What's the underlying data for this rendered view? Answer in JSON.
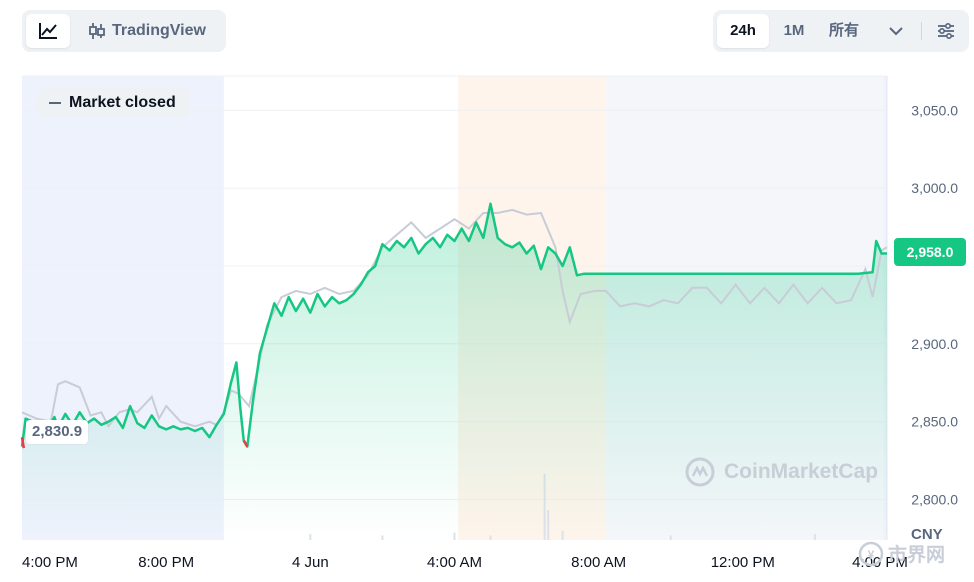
{
  "toolbar": {
    "line_chart_icon": "line-chart-icon",
    "tradingview_icon": "candlestick-icon",
    "tradingview_label": "TradingView",
    "ranges": [
      "24h",
      "1M",
      "所有"
    ],
    "active_range": "24h",
    "dropdown_icon": "chevron-down-icon",
    "settings_icon": "sliders-icon"
  },
  "market_status": "Market closed",
  "current_price_label": "2,958.0",
  "low_label": "2,830.9",
  "currency": "CNY",
  "watermark": "CoinMarketCap",
  "corner_logo": "市界网",
  "colors": {
    "line": "#16c784",
    "compare_line": "#c8ccd6",
    "asia_session": "#eef2fc",
    "london_session": "#fef4ec",
    "ny_session": "#f4f6fa",
    "down": "#ea3943"
  },
  "chart_data": {
    "type": "line",
    "title": "",
    "xlabel": "",
    "ylabel": "CNY",
    "x_ticks": [
      "4:00 PM",
      "8:00 PM",
      "4 Jun",
      "4:00 AM",
      "8:00 AM",
      "12:00 PM",
      "4:00 PM"
    ],
    "y_ticks": [
      2800,
      2850,
      2900,
      2950,
      3000,
      3050
    ],
    "y_tick_labels": [
      "2,800.0",
      "2,850.0",
      "2,900.0",
      "",
      "3,000.0",
      "3,050.0"
    ],
    "ylim": [
      2774,
      3072
    ],
    "x_range_hours": [
      0,
      24
    ],
    "grid": true,
    "legend": "none",
    "series": [
      {
        "values": [
          [
            0,
            2834
          ],
          [
            0.1,
            2852
          ],
          [
            0.3,
            2850
          ],
          [
            0.5,
            2848
          ],
          [
            0.7,
            2845
          ],
          [
            0.9,
            2853
          ],
          [
            1.0,
            2846
          ],
          [
            1.2,
            2855
          ],
          [
            1.4,
            2848
          ],
          [
            1.6,
            2856
          ],
          [
            1.8,
            2849
          ],
          [
            2.0,
            2852
          ],
          [
            2.2,
            2848
          ],
          [
            2.4,
            2850
          ],
          [
            2.6,
            2853
          ],
          [
            2.8,
            2846
          ],
          [
            3.0,
            2860
          ],
          [
            3.2,
            2849
          ],
          [
            3.4,
            2846
          ],
          [
            3.6,
            2854
          ],
          [
            3.8,
            2847
          ],
          [
            4.0,
            2845
          ],
          [
            4.2,
            2847
          ],
          [
            4.4,
            2845
          ],
          [
            4.6,
            2846
          ],
          [
            4.8,
            2844
          ],
          [
            5.0,
            2846
          ],
          [
            5.2,
            2840
          ],
          [
            5.4,
            2848
          ],
          [
            5.6,
            2855
          ],
          [
            5.8,
            2875
          ],
          [
            5.95,
            2888
          ],
          [
            6.05,
            2860
          ],
          [
            6.15,
            2838
          ],
          [
            6.25,
            2834
          ],
          [
            6.4,
            2862
          ],
          [
            6.6,
            2894
          ],
          [
            6.8,
            2910
          ],
          [
            7.0,
            2926
          ],
          [
            7.2,
            2918
          ],
          [
            7.4,
            2930
          ],
          [
            7.6,
            2921
          ],
          [
            7.8,
            2929
          ],
          [
            8.0,
            2920
          ],
          [
            8.2,
            2932
          ],
          [
            8.4,
            2924
          ],
          [
            8.6,
            2930
          ],
          [
            8.8,
            2926
          ],
          [
            9.0,
            2928
          ],
          [
            9.2,
            2932
          ],
          [
            9.4,
            2938
          ],
          [
            9.6,
            2946
          ],
          [
            9.8,
            2950
          ],
          [
            10.0,
            2964
          ],
          [
            10.2,
            2960
          ],
          [
            10.4,
            2966
          ],
          [
            10.6,
            2962
          ],
          [
            10.8,
            2968
          ],
          [
            11.0,
            2958
          ],
          [
            11.2,
            2964
          ],
          [
            11.4,
            2968
          ],
          [
            11.6,
            2962
          ],
          [
            11.8,
            2970
          ],
          [
            12.0,
            2966
          ],
          [
            12.2,
            2974
          ],
          [
            12.4,
            2966
          ],
          [
            12.6,
            2978
          ],
          [
            12.8,
            2968
          ],
          [
            13.0,
            2990
          ],
          [
            13.2,
            2968
          ],
          [
            13.4,
            2964
          ],
          [
            13.6,
            2962
          ],
          [
            13.8,
            2965
          ],
          [
            14.0,
            2958
          ],
          [
            14.2,
            2963
          ],
          [
            14.4,
            2948
          ],
          [
            14.6,
            2962
          ],
          [
            14.8,
            2958
          ],
          [
            15.0,
            2950
          ],
          [
            15.2,
            2962
          ],
          [
            15.4,
            2944
          ],
          [
            15.6,
            2945
          ],
          [
            15.8,
            2945
          ],
          [
            16.5,
            2945
          ],
          [
            18.0,
            2945
          ],
          [
            20.0,
            2945
          ],
          [
            22.0,
            2945
          ],
          [
            23.2,
            2945
          ],
          [
            23.6,
            2946
          ],
          [
            23.7,
            2966
          ],
          [
            23.85,
            2958
          ],
          [
            24.0,
            2958
          ]
        ]
      },
      {
        "values": [
          [
            0,
            2856
          ],
          [
            0.4,
            2852
          ],
          [
            0.8,
            2850
          ],
          [
            1.0,
            2874
          ],
          [
            1.2,
            2876
          ],
          [
            1.6,
            2872
          ],
          [
            1.9,
            2854
          ],
          [
            2.2,
            2856
          ],
          [
            2.4,
            2847
          ],
          [
            2.7,
            2856
          ],
          [
            3.0,
            2858
          ],
          [
            3.2,
            2856
          ],
          [
            3.6,
            2866
          ],
          [
            3.8,
            2852
          ],
          [
            4.0,
            2860
          ],
          [
            4.4,
            2850
          ],
          [
            4.8,
            2847
          ],
          [
            5.2,
            2850
          ],
          [
            5.4,
            2848
          ],
          [
            5.6,
            2856
          ],
          [
            5.8,
            2870
          ],
          [
            6.0,
            2868
          ],
          [
            6.3,
            2860
          ],
          [
            6.6,
            2890
          ],
          [
            6.8,
            2912
          ],
          [
            7.2,
            2930
          ],
          [
            7.6,
            2934
          ],
          [
            8.0,
            2932
          ],
          [
            8.4,
            2936
          ],
          [
            8.8,
            2932
          ],
          [
            9.2,
            2934
          ],
          [
            9.6,
            2944
          ],
          [
            10.0,
            2962
          ],
          [
            10.4,
            2970
          ],
          [
            10.8,
            2978
          ],
          [
            11.2,
            2968
          ],
          [
            11.6,
            2974
          ],
          [
            12.0,
            2980
          ],
          [
            12.4,
            2974
          ],
          [
            12.8,
            2984
          ],
          [
            13.2,
            2984
          ],
          [
            13.6,
            2986
          ],
          [
            14.0,
            2983
          ],
          [
            14.4,
            2984
          ],
          [
            14.8,
            2962
          ],
          [
            15.0,
            2934
          ],
          [
            15.2,
            2914
          ],
          [
            15.5,
            2932
          ],
          [
            15.9,
            2934
          ],
          [
            16.2,
            2934
          ],
          [
            16.6,
            2924
          ],
          [
            17.0,
            2926
          ],
          [
            17.4,
            2924
          ],
          [
            17.8,
            2928
          ],
          [
            18.2,
            2926
          ],
          [
            18.6,
            2936
          ],
          [
            19.0,
            2936
          ],
          [
            19.4,
            2926
          ],
          [
            19.8,
            2938
          ],
          [
            20.2,
            2926
          ],
          [
            20.6,
            2936
          ],
          [
            21.0,
            2926
          ],
          [
            21.4,
            2938
          ],
          [
            21.8,
            2926
          ],
          [
            22.2,
            2936
          ],
          [
            22.6,
            2926
          ],
          [
            23.0,
            2928
          ],
          [
            23.4,
            2948
          ],
          [
            23.6,
            2930
          ],
          [
            23.85,
            2960
          ],
          [
            24.0,
            2962
          ]
        ]
      }
    ],
    "volume_bars": [
      [
        8.0,
        4
      ],
      [
        10.0,
        3
      ],
      [
        12.0,
        5
      ],
      [
        13.0,
        3
      ],
      [
        14.5,
        44
      ],
      [
        14.6,
        20
      ],
      [
        15.0,
        6
      ],
      [
        18.0,
        3
      ],
      [
        22.0,
        4
      ]
    ]
  }
}
